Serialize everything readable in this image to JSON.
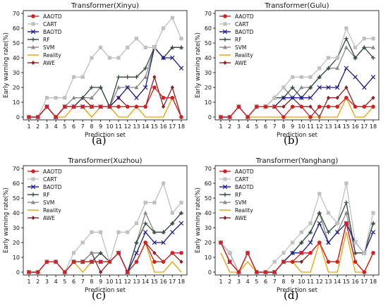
{
  "colors": {
    "AAOTD": "#d62020",
    "CART": "#c0c0c0",
    "BAOTD": "#1a1a8c",
    "RF": "#2e4a3a",
    "SVM": "#8a8a8a",
    "Reality": "#f0a000",
    "AWE": "#8b2323"
  },
  "chart_data": [
    {
      "type": "line",
      "title": "Transformer(Xinyu)",
      "caption": "(a)",
      "xlabel": "Prediction set",
      "ylabel": "Early warning rate(%)",
      "ylim": [
        0,
        70
      ],
      "yticks": [
        0,
        10,
        20,
        30,
        40,
        50,
        60,
        70
      ],
      "x": [
        1,
        2,
        3,
        4,
        5,
        6,
        7,
        8,
        9,
        10,
        11,
        12,
        13,
        14,
        15,
        16,
        17,
        18
      ],
      "legend_position": "top-left",
      "series": [
        {
          "name": "AAOTD",
          "marker": "circle",
          "values": [
            0,
            0,
            7,
            0,
            7,
            7,
            7,
            7,
            7,
            7,
            7,
            7,
            7,
            7,
            20,
            13,
            13,
            0
          ]
        },
        {
          "name": "CART",
          "marker": "square",
          "values": [
            0,
            0,
            13,
            13,
            13,
            27,
            27,
            40,
            47,
            40,
            40,
            47,
            53,
            47,
            47,
            60,
            67,
            53
          ]
        },
        {
          "name": "BAOTD",
          "marker": "x",
          "values": [
            0,
            0,
            7,
            0,
            7,
            7,
            7,
            7,
            7,
            7,
            13,
            20,
            13,
            20,
            47,
            40,
            40,
            33
          ]
        },
        {
          "name": "RF",
          "marker": "plus",
          "values": [
            0,
            0,
            7,
            0,
            7,
            7,
            13,
            20,
            20,
            7,
            27,
            27,
            27,
            33,
            47,
            40,
            47,
            47
          ]
        },
        {
          "name": "SVM",
          "marker": "triangle",
          "values": [
            0,
            0,
            7,
            0,
            7,
            13,
            13,
            13,
            20,
            7,
            20,
            20,
            20,
            27,
            47,
            40,
            47,
            47
          ]
        },
        {
          "name": "Reality",
          "marker": "none",
          "values": [
            0,
            0,
            7,
            0,
            0,
            7,
            7,
            0,
            7,
            7,
            0,
            0,
            7,
            0,
            0,
            0,
            13,
            0
          ]
        },
        {
          "name": "AWE",
          "marker": "diamond",
          "values": [
            0,
            0,
            7,
            0,
            7,
            7,
            13,
            7,
            7,
            7,
            13,
            7,
            7,
            7,
            27,
            7,
            20,
            0
          ]
        }
      ]
    },
    {
      "type": "line",
      "title": "Transformer(Gulu)",
      "caption": "(b)",
      "xlabel": "Prediction set",
      "ylabel": "Early warning rate(%)",
      "ylim": [
        0,
        70
      ],
      "yticks": [
        0,
        10,
        20,
        30,
        40,
        50,
        60,
        70
      ],
      "x": [
        1,
        2,
        3,
        4,
        5,
        6,
        7,
        8,
        9,
        10,
        11,
        12,
        13,
        14,
        15,
        16,
        17,
        18
      ],
      "legend_position": "top-left",
      "series": [
        {
          "name": "AAOTD",
          "marker": "circle",
          "values": [
            0,
            0,
            7,
            0,
            7,
            7,
            7,
            0,
            7,
            7,
            0,
            7,
            7,
            7,
            13,
            7,
            7,
            7
          ]
        },
        {
          "name": "CART",
          "marker": "square",
          "values": [
            0,
            0,
            7,
            0,
            7,
            7,
            13,
            20,
            27,
            27,
            27,
            33,
            40,
            40,
            60,
            47,
            53,
            53
          ]
        },
        {
          "name": "BAOTD",
          "marker": "x",
          "values": [
            0,
            0,
            7,
            0,
            7,
            7,
            7,
            13,
            13,
            13,
            13,
            20,
            20,
            20,
            33,
            27,
            20,
            27
          ]
        },
        {
          "name": "RF",
          "marker": "plus",
          "values": [
            0,
            0,
            7,
            0,
            7,
            7,
            13,
            13,
            20,
            13,
            20,
            27,
            33,
            40,
            53,
            40,
            47,
            40
          ]
        },
        {
          "name": "SVM",
          "marker": "triangle",
          "values": [
            0,
            0,
            7,
            0,
            7,
            7,
            13,
            20,
            13,
            20,
            20,
            27,
            33,
            33,
            47,
            40,
            47,
            47
          ]
        },
        {
          "name": "Reality",
          "marker": "none",
          "values": [
            0,
            0,
            7,
            0,
            0,
            0,
            0,
            0,
            0,
            0,
            0,
            0,
            0,
            0,
            13,
            0,
            0,
            7
          ]
        },
        {
          "name": "AWE",
          "marker": "diamond",
          "values": [
            0,
            0,
            7,
            0,
            7,
            7,
            7,
            7,
            13,
            7,
            7,
            0,
            13,
            13,
            20,
            7,
            7,
            13
          ]
        }
      ]
    },
    {
      "type": "line",
      "title": "Transformer(Xuzhou)",
      "caption": "(c)",
      "xlabel": "Prediction set",
      "ylabel": "Early warning rate(%)",
      "ylim": [
        0,
        70
      ],
      "yticks": [
        0,
        10,
        20,
        30,
        40,
        50,
        60,
        70
      ],
      "x": [
        1,
        2,
        3,
        4,
        5,
        6,
        7,
        8,
        9,
        10,
        11,
        12,
        13,
        14,
        15,
        16,
        17,
        18
      ],
      "legend_position": "top-left",
      "series": [
        {
          "name": "AAOTD",
          "marker": "circle",
          "values": [
            0,
            0,
            7,
            7,
            0,
            7,
            7,
            7,
            7,
            7,
            13,
            0,
            7,
            20,
            7,
            7,
            13,
            13
          ]
        },
        {
          "name": "CART",
          "marker": "square",
          "values": [
            0,
            0,
            7,
            7,
            0,
            13,
            20,
            27,
            27,
            7,
            27,
            27,
            33,
            47,
            47,
            60,
            40,
            47
          ]
        },
        {
          "name": "BAOTD",
          "marker": "x",
          "values": [
            0,
            0,
            7,
            7,
            0,
            7,
            7,
            7,
            7,
            7,
            13,
            0,
            13,
            27,
            20,
            20,
            27,
            33
          ]
        },
        {
          "name": "RF",
          "marker": "plus",
          "values": [
            0,
            0,
            7,
            7,
            0,
            7,
            7,
            7,
            13,
            7,
            13,
            0,
            20,
            33,
            27,
            27,
            33,
            40
          ]
        },
        {
          "name": "SVM",
          "marker": "triangle",
          "values": [
            0,
            0,
            7,
            7,
            0,
            7,
            7,
            13,
            13,
            7,
            13,
            0,
            20,
            40,
            27,
            27,
            33,
            40
          ]
        },
        {
          "name": "Reality",
          "marker": "none",
          "values": [
            0,
            0,
            7,
            7,
            0,
            7,
            0,
            7,
            7,
            7,
            13,
            0,
            7,
            20,
            0,
            0,
            7,
            0
          ]
        },
        {
          "name": "AWE",
          "marker": "diamond",
          "values": [
            0,
            0,
            7,
            7,
            0,
            7,
            7,
            13,
            0,
            7,
            13,
            0,
            7,
            20,
            13,
            7,
            13,
            7
          ]
        }
      ]
    },
    {
      "type": "line",
      "title": "Transformer(Yanghang)",
      "caption": "(d)",
      "xlabel": "Prediction set",
      "ylabel": "Early warning rate(%)",
      "ylim": [
        0,
        70
      ],
      "yticks": [
        0,
        10,
        20,
        30,
        40,
        50,
        60,
        70
      ],
      "x": [
        1,
        2,
        3,
        4,
        5,
        6,
        7,
        8,
        9,
        10,
        11,
        12,
        13,
        14,
        15,
        16,
        17,
        18
      ],
      "legend_position": "top-left",
      "series": [
        {
          "name": "AAOTD",
          "marker": "circle",
          "values": [
            20,
            7,
            0,
            13,
            0,
            0,
            0,
            7,
            7,
            13,
            13,
            20,
            7,
            7,
            33,
            7,
            0,
            13
          ]
        },
        {
          "name": "CART",
          "marker": "square",
          "values": [
            20,
            13,
            0,
            13,
            0,
            0,
            7,
            13,
            20,
            27,
            33,
            53,
            40,
            33,
            60,
            20,
            13,
            40
          ]
        },
        {
          "name": "BAOTD",
          "marker": "x",
          "values": [
            20,
            7,
            0,
            13,
            0,
            0,
            0,
            7,
            13,
            13,
            20,
            33,
            20,
            27,
            33,
            20,
            13,
            27
          ]
        },
        {
          "name": "RF",
          "marker": "plus",
          "values": [
            20,
            13,
            0,
            13,
            0,
            0,
            0,
            7,
            13,
            20,
            27,
            40,
            27,
            33,
            47,
            13,
            13,
            33
          ]
        },
        {
          "name": "SVM",
          "marker": "triangle",
          "values": [
            20,
            13,
            0,
            13,
            0,
            0,
            0,
            7,
            13,
            20,
            27,
            40,
            20,
            27,
            40,
            13,
            13,
            33
          ]
        },
        {
          "name": "Reality",
          "marker": "none",
          "values": [
            13,
            0,
            0,
            7,
            0,
            0,
            0,
            7,
            7,
            0,
            0,
            20,
            0,
            0,
            27,
            0,
            0,
            13
          ]
        },
        {
          "name": "AWE",
          "marker": "diamond",
          "values": [
            20,
            7,
            0,
            13,
            0,
            0,
            0,
            7,
            7,
            7,
            13,
            20,
            7,
            7,
            33,
            7,
            0,
            13
          ]
        }
      ]
    }
  ]
}
